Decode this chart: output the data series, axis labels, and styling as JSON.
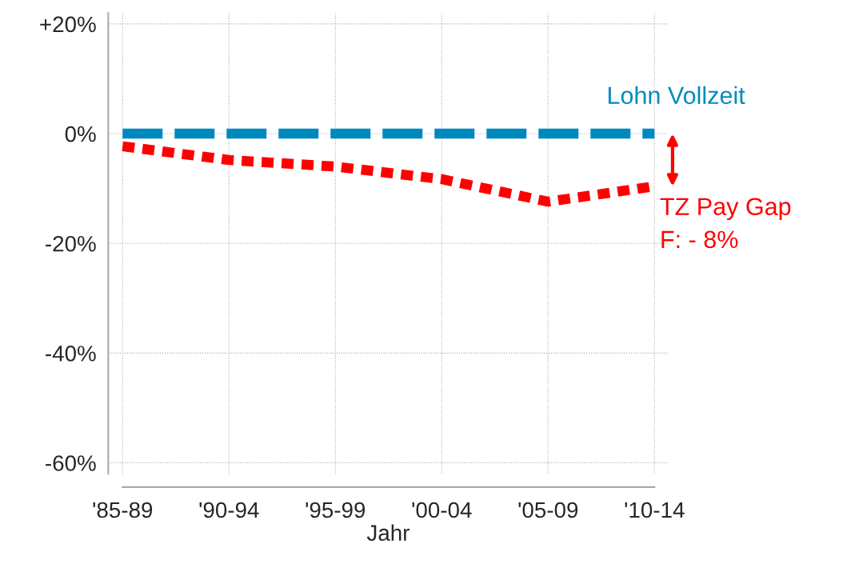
{
  "chart_data": {
    "type": "line",
    "xlabel": "Jahr",
    "categories": [
      "'85-89",
      "'90-94",
      "'95-99",
      "'00-04",
      "'05-09",
      "'10-14"
    ],
    "series": [
      {
        "name": "Lohn Vollzeit",
        "color": "#0089bf",
        "line_style": "dashed",
        "values": [
          0,
          0,
          0,
          0,
          0,
          0
        ]
      },
      {
        "name": "TZ Pay Gap",
        "color": "#ff0000",
        "line_style": "dotted",
        "values": [
          -2.3,
          -4.8,
          -6,
          -8.3,
          -12.4,
          -9.6
        ]
      }
    ],
    "annotations": [
      "F: - 8%"
    ],
    "ylim": [
      -62,
      22
    ],
    "yticks": [
      {
        "value": 20,
        "label": "+20%"
      },
      {
        "value": 0,
        "label": "0%"
      },
      {
        "value": -20,
        "label": "-20%"
      },
      {
        "value": -40,
        "label": "-40%"
      },
      {
        "value": -60,
        "label": "-60%"
      }
    ],
    "grid": true,
    "marker": "none",
    "legend": "right"
  }
}
